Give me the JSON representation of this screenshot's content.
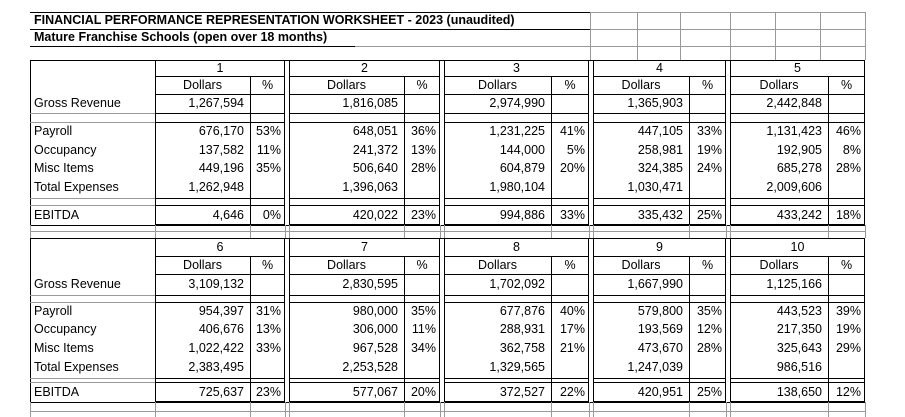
{
  "title": "FINANCIAL PERFORMANCE REPRESENTATION WORKSHEET - 2023 (unaudited)",
  "subtitle": "Mature Franchise Schools (open over 18 months)",
  "row_labels": [
    "Gross Revenue",
    "Payroll",
    "Occupancy",
    "Misc Items",
    "Total Expenses",
    "EBITDA"
  ],
  "col_headers": {
    "dollars": "Dollars",
    "percent": "%"
  },
  "schools": [
    {
      "num": "1",
      "gross": "1,267,594",
      "payroll": "676,170",
      "payroll_pct": "53%",
      "occupancy": "137,582",
      "occupancy_pct": "11%",
      "misc": "449,196",
      "misc_pct": "35%",
      "total": "1,262,948",
      "ebitda": "4,646",
      "ebitda_pct": "0%"
    },
    {
      "num": "2",
      "gross": "1,816,085",
      "payroll": "648,051",
      "payroll_pct": "36%",
      "occupancy": "241,372",
      "occupancy_pct": "13%",
      "misc": "506,640",
      "misc_pct": "28%",
      "total": "1,396,063",
      "ebitda": "420,022",
      "ebitda_pct": "23%"
    },
    {
      "num": "3",
      "gross": "2,974,990",
      "payroll": "1,231,225",
      "payroll_pct": "41%",
      "occupancy": "144,000",
      "occupancy_pct": "5%",
      "misc": "604,879",
      "misc_pct": "20%",
      "total": "1,980,104",
      "ebitda": "994,886",
      "ebitda_pct": "33%"
    },
    {
      "num": "4",
      "gross": "1,365,903",
      "payroll": "447,105",
      "payroll_pct": "33%",
      "occupancy": "258,981",
      "occupancy_pct": "19%",
      "misc": "324,385",
      "misc_pct": "24%",
      "total": "1,030,471",
      "ebitda": "335,432",
      "ebitda_pct": "25%"
    },
    {
      "num": "5",
      "gross": "2,442,848",
      "payroll": "1,131,423",
      "payroll_pct": "46%",
      "occupancy": "192,905",
      "occupancy_pct": "8%",
      "misc": "685,278",
      "misc_pct": "28%",
      "total": "2,009,606",
      "ebitda": "433,242",
      "ebitda_pct": "18%"
    },
    {
      "num": "6",
      "gross": "3,109,132",
      "payroll": "954,397",
      "payroll_pct": "31%",
      "occupancy": "406,676",
      "occupancy_pct": "13%",
      "misc": "1,022,422",
      "misc_pct": "33%",
      "total": "2,383,495",
      "ebitda": "725,637",
      "ebitda_pct": "23%"
    },
    {
      "num": "7",
      "gross": "2,830,595",
      "payroll": "980,000",
      "payroll_pct": "35%",
      "occupancy": "306,000",
      "occupancy_pct": "11%",
      "misc": "967,528",
      "misc_pct": "34%",
      "total": "2,253,528",
      "ebitda": "577,067",
      "ebitda_pct": "20%"
    },
    {
      "num": "8",
      "gross": "1,702,092",
      "payroll": "677,876",
      "payroll_pct": "40%",
      "occupancy": "288,931",
      "occupancy_pct": "17%",
      "misc": "362,758",
      "misc_pct": "21%",
      "total": "1,329,565",
      "ebitda": "372,527",
      "ebitda_pct": "22%"
    },
    {
      "num": "9",
      "gross": "1,667,990",
      "payroll": "579,800",
      "payroll_pct": "35%",
      "occupancy": "193,569",
      "occupancy_pct": "12%",
      "misc": "473,670",
      "misc_pct": "28%",
      "total": "1,247,039",
      "ebitda": "420,951",
      "ebitda_pct": "25%"
    },
    {
      "num": "10",
      "gross": "1,125,166",
      "payroll": "443,523",
      "payroll_pct": "39%",
      "occupancy": "217,350",
      "occupancy_pct": "19%",
      "misc": "325,643",
      "misc_pct": "29%",
      "total": "986,516",
      "ebitda": "138,650",
      "ebitda_pct": "12%"
    }
  ]
}
